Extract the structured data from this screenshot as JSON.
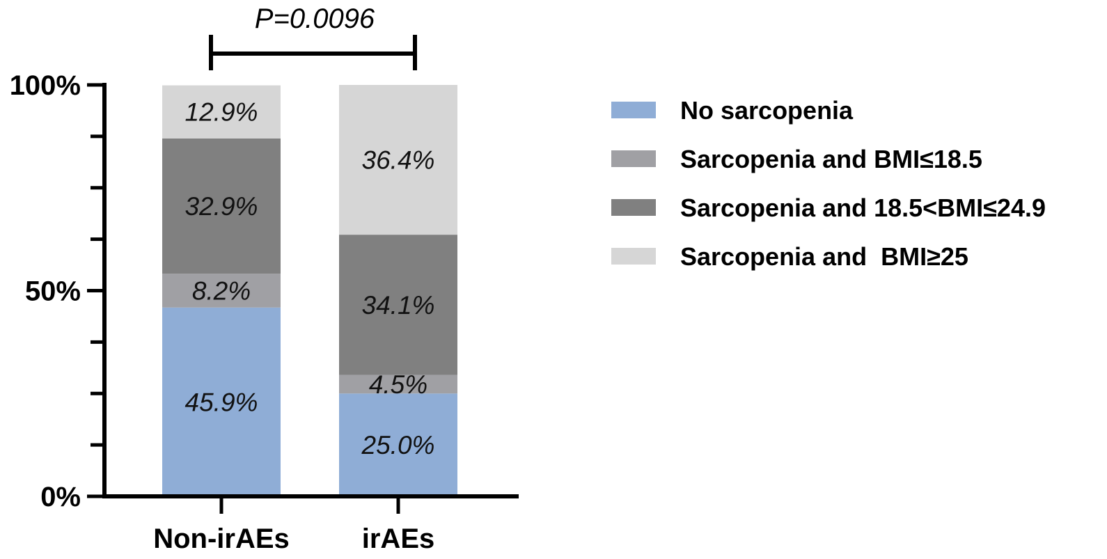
{
  "chart_data": {
    "type": "bar",
    "stacked": true,
    "title": "",
    "xlabel": "",
    "ylabel": "",
    "ylim": [
      0,
      100
    ],
    "y_ticks": [
      "0%",
      "50%",
      "100%"
    ],
    "categories": [
      "Non-irAEs",
      "irAEs"
    ],
    "series": [
      {
        "name": "No sarcopenia",
        "color": "#8fadd6",
        "values": [
          45.9,
          25.0
        ],
        "labels": [
          "45.9%",
          "25.0%"
        ]
      },
      {
        "name": "Sarcopenia and BMI≤18.5",
        "color": "#a0a0a4",
        "values": [
          8.2,
          4.5
        ],
        "labels": [
          "8.2%",
          "4.5%"
        ]
      },
      {
        "name": "Sarcopenia and 18.5<BMI≤24.9",
        "color": "#808080",
        "values": [
          32.9,
          34.1
        ],
        "labels": [
          "32.9%",
          "34.1%"
        ]
      },
      {
        "name": "Sarcopenia and  BMI≥25",
        "color": "#d6d6d6",
        "values": [
          12.9,
          36.4
        ],
        "labels": [
          "12.9%",
          "36.4%"
        ]
      }
    ],
    "annotation": {
      "text": "P=0.0096",
      "between": [
        "Non-irAEs",
        "irAEs"
      ]
    },
    "legend_position": "right"
  }
}
